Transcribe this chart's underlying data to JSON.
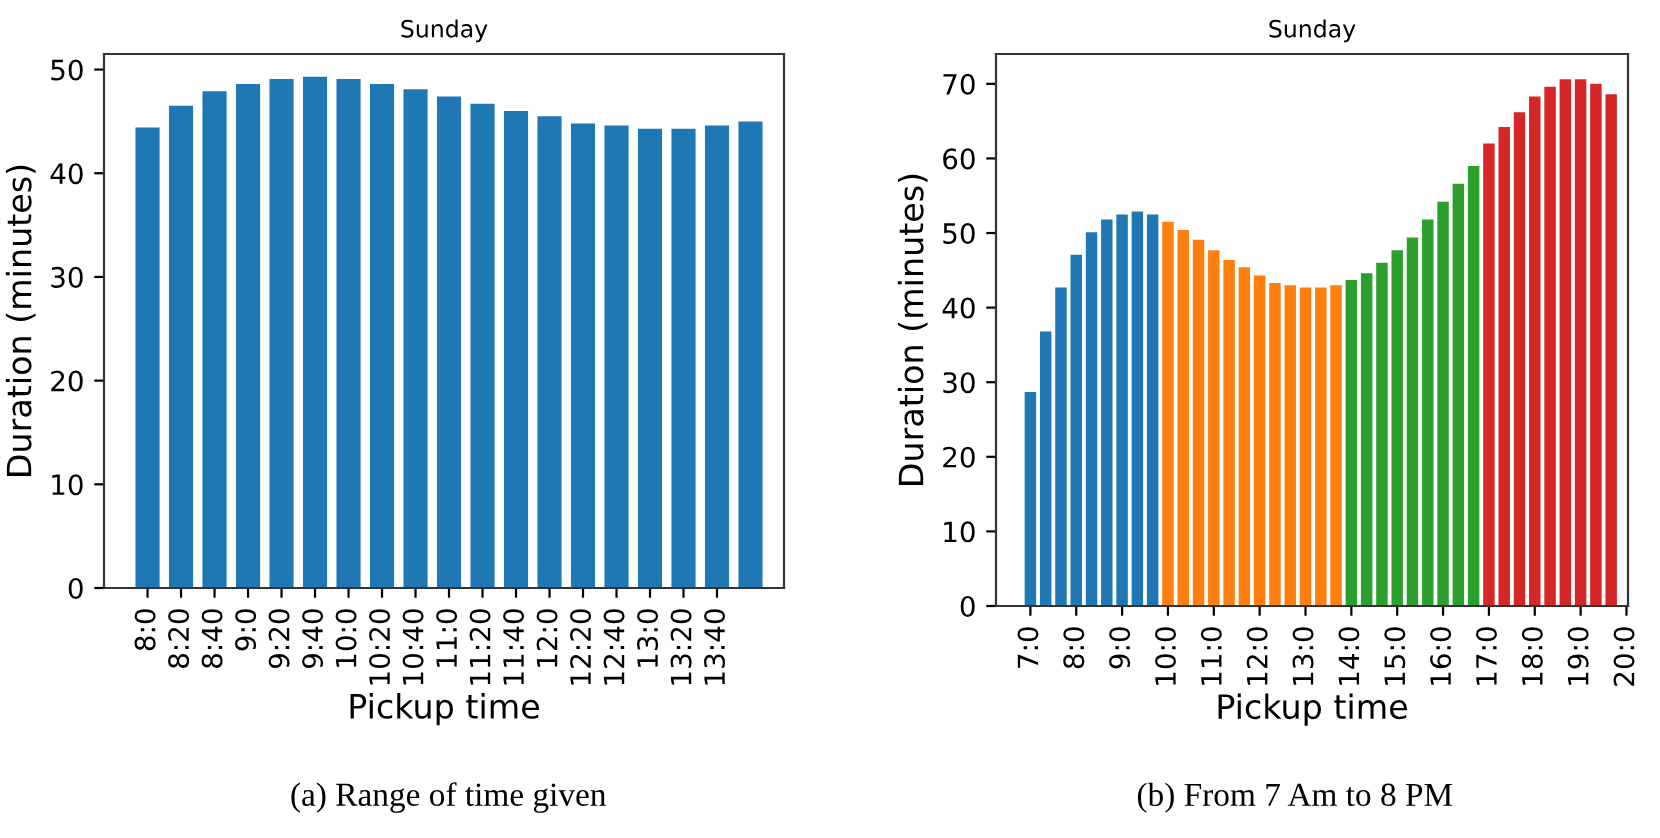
{
  "chart_data": [
    {
      "type": "bar",
      "title": "Sunday",
      "xlabel": "Pickup time",
      "ylabel": "Duration (minutes)",
      "categories": [
        "8:0",
        "8:20",
        "8:40",
        "9:0",
        "9:20",
        "9:40",
        "10:0",
        "10:20",
        "10:40",
        "11:0",
        "11:20",
        "11:40",
        "12:0",
        "12:20",
        "12:40",
        "13:0",
        "13:20",
        "13:40",
        null
      ],
      "values": [
        44.4,
        46.5,
        47.9,
        48.6,
        49.1,
        49.3,
        49.1,
        48.6,
        48.1,
        47.4,
        46.7,
        46.0,
        45.5,
        44.8,
        44.6,
        44.3,
        44.3,
        44.6,
        45.0
      ],
      "color": "#1f77b4",
      "ylim": [
        0,
        51.5
      ],
      "yticks": [
        0,
        10,
        20,
        30,
        40,
        50
      ],
      "grid": false,
      "annotations": [
        "(a) Range of time given"
      ]
    },
    {
      "type": "bar",
      "title": "Sunday",
      "xlabel": "Pickup time",
      "ylabel": "Duration (minutes)",
      "categories": [
        "7:0",
        null,
        null,
        "8:0",
        null,
        null,
        "9:0",
        null,
        null,
        "10:0",
        null,
        null,
        "11:0",
        null,
        null,
        "12:0",
        null,
        null,
        "13:0",
        null,
        null,
        "14:0",
        null,
        null,
        "15:0",
        null,
        null,
        "16:0",
        null,
        null,
        "17:0",
        null,
        null,
        "18:0",
        null,
        null,
        "19:0",
        null,
        null,
        "20:0"
      ],
      "values": [
        28.7,
        36.8,
        42.7,
        47.1,
        50.1,
        51.8,
        52.5,
        52.9,
        52.5,
        51.5,
        50.4,
        49.1,
        47.7,
        46.4,
        45.4,
        44.3,
        43.3,
        43.0,
        42.7,
        42.7,
        43.0,
        43.7,
        44.6,
        46.0,
        47.7,
        49.4,
        51.8,
        54.2,
        56.6,
        59.0,
        62.0,
        64.2,
        66.2,
        68.3,
        69.6,
        70.6,
        70.6,
        70.0,
        68.6,
        null
      ],
      "colors": [
        "#1f77b4",
        "#1f77b4",
        "#1f77b4",
        "#1f77b4",
        "#1f77b4",
        "#1f77b4",
        "#1f77b4",
        "#1f77b4",
        "#1f77b4",
        "#ff7f0e",
        "#ff7f0e",
        "#ff7f0e",
        "#ff7f0e",
        "#ff7f0e",
        "#ff7f0e",
        "#ff7f0e",
        "#ff7f0e",
        "#ff7f0e",
        "#ff7f0e",
        "#ff7f0e",
        "#ff7f0e",
        "#2ca02c",
        "#2ca02c",
        "#2ca02c",
        "#2ca02c",
        "#2ca02c",
        "#2ca02c",
        "#2ca02c",
        "#2ca02c",
        "#2ca02c",
        "#d62728",
        "#d62728",
        "#d62728",
        "#d62728",
        "#d62728",
        "#d62728",
        "#d62728",
        "#d62728",
        "#d62728",
        null
      ],
      "ylim": [
        0,
        74
      ],
      "yticks": [
        0,
        10,
        20,
        30,
        40,
        50,
        60,
        70
      ],
      "grid": false,
      "annotations": [
        "(b) From 7 Am to 8 PM"
      ]
    }
  ]
}
